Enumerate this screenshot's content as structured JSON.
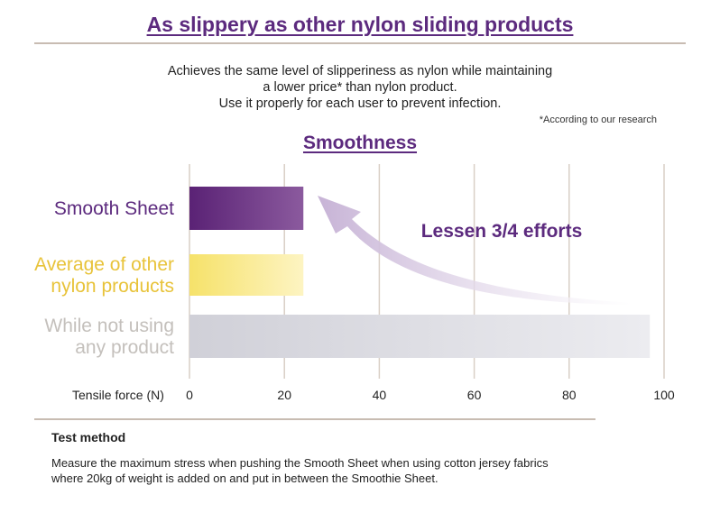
{
  "header": {
    "title": "As slippery as other nylon sliding products",
    "intro_lines": [
      "Achieves the same level of slipperiness as nylon while maintaining",
      "a lower price* than nylon product.",
      "Use it properly for each user to prevent infection."
    ],
    "note": "*According to our research"
  },
  "chart_data": {
    "type": "bar",
    "orientation": "horizontal",
    "title": "Smoothness",
    "categories": [
      "Smooth Sheet",
      "Average of other nylon products",
      "While not using any product"
    ],
    "category_lines": [
      [
        "Smooth Sheet"
      ],
      [
        "Average of other",
        "nylon products"
      ],
      [
        "While not using",
        "any product"
      ]
    ],
    "values": [
      24,
      24,
      97
    ],
    "xlabel": "Tensile force (N)",
    "xlim": [
      0,
      100
    ],
    "xticks": [
      0,
      20,
      40,
      60,
      80,
      100
    ],
    "grid": true,
    "annotation": "Lessen 3/4 efforts",
    "colors": {
      "bar_fills": [
        [
          "#5a2275",
          "#8b5a9e"
        ],
        [
          "#f6e26a",
          "#fdf4c2"
        ],
        [
          "#d0d0d8",
          "#ececf0"
        ]
      ],
      "category_label_colors": [
        "#5c2a7e",
        "#e8c33a",
        "#c4c0bc"
      ],
      "grid": "#d9cfc6",
      "arrow": "#c7b3d6",
      "annotation": "#5c2a7e"
    }
  },
  "test_method": {
    "title": "Test method",
    "lines": [
      "Measure the maximum stress when pushing the Smooth Sheet when using cotton jersey fabrics",
      "where 20kg of weight is added on and put in between the Smoothie Sheet."
    ]
  }
}
